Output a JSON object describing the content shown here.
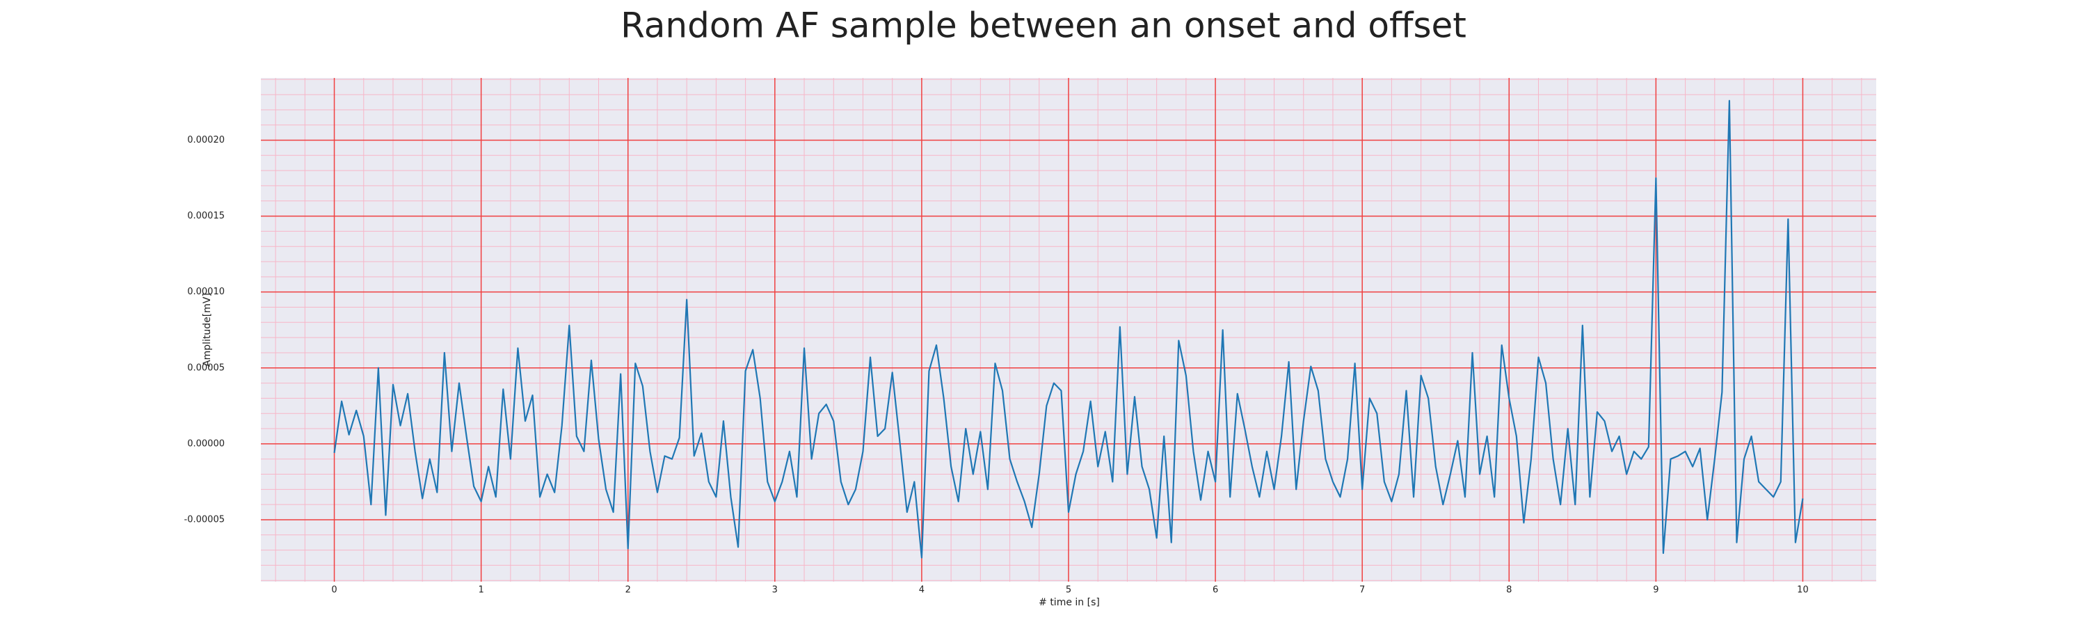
{
  "chart_data": {
    "type": "line",
    "title": "Random AF sample between an onset and offset",
    "x_label": "# time in [s]",
    "y_label": "Amplitude[mV]",
    "color": "#1f77b4",
    "grid": true,
    "minor_grid": true,
    "xlim": [
      -0.5,
      10.5
    ],
    "ylim": [
      -9.08e-05,
      0.000241
    ],
    "xticks": [
      0,
      1,
      2,
      3,
      4,
      5,
      6,
      7,
      8,
      9,
      10
    ],
    "yticks": [
      {
        "value": -5e-05,
        "label": "-0.00005"
      },
      {
        "value": 0,
        "label": "0.00000"
      },
      {
        "value": 5e-05,
        "label": "0.00005"
      },
      {
        "value": 0.0001,
        "label": "0.00010"
      },
      {
        "value": 0.00015,
        "label": "0.00015"
      },
      {
        "value": 0.0002,
        "label": "0.00020"
      }
    ],
    "minor_xticks": [
      -0.4,
      -0.2,
      0.2,
      0.4,
      0.6,
      0.8,
      1.2,
      1.4,
      1.6,
      1.8,
      2.2,
      2.4,
      2.6,
      2.8,
      3.2,
      3.4,
      3.6,
      3.8,
      4.2,
      4.4,
      4.6,
      4.8,
      5.2,
      5.4,
      5.6,
      5.8,
      6.2,
      6.4,
      6.6,
      6.8,
      7.2,
      7.4,
      7.6,
      7.8,
      8.2,
      8.4,
      8.6,
      8.8,
      9.2,
      9.4,
      9.6,
      9.8,
      10.2,
      10.4
    ],
    "minor_yticks": [
      -9e-05,
      -8e-05,
      -7e-05,
      -6e-05,
      -4e-05,
      -3e-05,
      -2e-05,
      -1e-05,
      1e-05,
      2e-05,
      3e-05,
      4e-05,
      6e-05,
      7e-05,
      8e-05,
      9e-05,
      0.00011,
      0.00012,
      0.00013,
      0.00014,
      0.00016,
      0.00017,
      0.00018,
      0.00019,
      0.00021,
      0.00022,
      0.00023,
      0.00024
    ],
    "x": [
      0,
      0.05,
      0.1,
      0.15,
      0.2,
      0.25,
      0.3,
      0.35,
      0.4,
      0.45,
      0.5,
      0.55,
      0.6,
      0.65,
      0.7,
      0.75,
      0.8,
      0.85,
      0.9,
      0.95,
      1,
      1.05,
      1.1,
      1.15,
      1.2,
      1.25,
      1.3,
      1.35,
      1.4,
      1.45,
      1.5,
      1.55,
      1.6,
      1.65,
      1.7,
      1.75,
      1.8,
      1.85,
      1.9,
      1.95,
      2,
      2.05,
      2.1,
      2.15,
      2.2,
      2.25,
      2.3,
      2.35,
      2.4,
      2.45,
      2.5,
      2.55,
      2.6,
      2.65,
      2.7,
      2.75,
      2.8,
      2.85,
      2.9,
      2.95,
      3,
      3.05,
      3.1,
      3.15,
      3.2,
      3.25,
      3.3,
      3.35,
      3.4,
      3.45,
      3.5,
      3.55,
      3.6,
      3.65,
      3.7,
      3.75,
      3.8,
      3.85,
      3.9,
      3.95,
      4,
      4.05,
      4.1,
      4.15,
      4.2,
      4.25,
      4.3,
      4.35,
      4.4,
      4.45,
      4.5,
      4.55,
      4.6,
      4.65,
      4.7,
      4.75,
      4.8,
      4.85,
      4.9,
      4.95,
      5,
      5.05,
      5.1,
      5.15,
      5.2,
      5.25,
      5.3,
      5.35,
      5.4,
      5.45,
      5.5,
      5.55,
      5.6,
      5.65,
      5.7,
      5.75,
      5.8,
      5.85,
      5.9,
      5.95,
      6,
      6.05,
      6.1,
      6.15,
      6.2,
      6.25,
      6.3,
      6.35,
      6.4,
      6.45,
      6.5,
      6.55,
      6.6,
      6.65,
      6.7,
      6.75,
      6.8,
      6.85,
      6.9,
      6.95,
      7,
      7.05,
      7.1,
      7.15,
      7.2,
      7.25,
      7.3,
      7.35,
      7.4,
      7.45,
      7.5,
      7.55,
      7.6,
      7.65,
      7.7,
      7.75,
      7.8,
      7.85,
      7.9,
      7.95,
      8,
      8.05,
      8.1,
      8.15,
      8.2,
      8.25,
      8.3,
      8.35,
      8.4,
      8.45,
      8.5,
      8.55,
      8.6,
      8.65,
      8.7,
      8.75,
      8.8,
      8.85,
      8.9,
      8.95,
      9,
      9.05,
      9.1,
      9.15,
      9.2,
      9.25,
      9.3,
      9.35,
      9.4,
      9.45,
      9.5,
      9.55,
      9.6,
      9.65,
      9.7,
      9.75,
      9.8,
      9.85,
      9.9,
      9.95,
      10
    ],
    "values": [
      -6e-06,
      2.8e-05,
      6e-06,
      2.2e-05,
      5e-06,
      -4e-05,
      5e-05,
      -4.7e-05,
      3.9e-05,
      1.2e-05,
      3.3e-05,
      -5e-06,
      -3.6e-05,
      -1e-05,
      -3.2e-05,
      6e-05,
      -5e-06,
      4e-05,
      5e-06,
      -2.8e-05,
      -3.8e-05,
      -1.5e-05,
      -3.5e-05,
      3.6e-05,
      -1e-05,
      6.3e-05,
      1.5e-05,
      3.2e-05,
      -3.5e-05,
      -2e-05,
      -3.2e-05,
      1.2e-05,
      7.8e-05,
      5e-06,
      -5e-06,
      5.5e-05,
      3e-06,
      -3e-05,
      -4.5e-05,
      4.6e-05,
      -6.9e-05,
      5.3e-05,
      3.8e-05,
      -5e-06,
      -3.2e-05,
      -8e-06,
      -1e-05,
      4e-06,
      9.5e-05,
      -8e-06,
      7e-06,
      -2.5e-05,
      -3.5e-05,
      1.5e-05,
      -3.5e-05,
      -6.8e-05,
      4.8e-05,
      6.2e-05,
      3e-05,
      -2.5e-05,
      -3.8e-05,
      -2.5e-05,
      -5e-06,
      -3.5e-05,
      6.3e-05,
      -1e-05,
      2e-05,
      2.6e-05,
      1.5e-05,
      -2.5e-05,
      -4e-05,
      -3e-05,
      -5e-06,
      5.7e-05,
      5e-06,
      1e-05,
      4.7e-05,
      2e-06,
      -4.5e-05,
      -2.5e-05,
      -7.5e-05,
      4.8e-05,
      6.5e-05,
      3e-05,
      -1.5e-05,
      -3.8e-05,
      1e-05,
      -2e-05,
      8e-06,
      -3e-05,
      5.3e-05,
      3.5e-05,
      -1e-05,
      -2.5e-05,
      -3.8e-05,
      -5.5e-05,
      -2e-05,
      2.5e-05,
      4e-05,
      3.5e-05,
      -4.5e-05,
      -2e-05,
      -5e-06,
      2.8e-05,
      -1.5e-05,
      8e-06,
      -2.5e-05,
      7.7e-05,
      -2e-05,
      3.1e-05,
      -1.5e-05,
      -3e-05,
      -6.2e-05,
      5e-06,
      -6.5e-05,
      6.8e-05,
      4.5e-05,
      -5e-06,
      -3.7e-05,
      -5e-06,
      -2.5e-05,
      7.5e-05,
      -3.5e-05,
      3.3e-05,
      1e-05,
      -1.5e-05,
      -3.5e-05,
      -5e-06,
      -3e-05,
      5e-06,
      5.4e-05,
      -3e-05,
      1.5e-05,
      5.1e-05,
      3.5e-05,
      -1e-05,
      -2.5e-05,
      -3.5e-05,
      -1e-05,
      5.3e-05,
      -3e-05,
      3e-05,
      2e-05,
      -2.5e-05,
      -3.8e-05,
      -2e-05,
      3.5e-05,
      -3.5e-05,
      4.5e-05,
      3e-05,
      -1.5e-05,
      -4e-05,
      -2e-05,
      2e-06,
      -3.5e-05,
      6e-05,
      -2e-05,
      5e-06,
      -3.5e-05,
      6.5e-05,
      3e-05,
      5e-06,
      -5.2e-05,
      -1e-05,
      5.7e-05,
      4e-05,
      -1e-05,
      -4e-05,
      1e-05,
      -4e-05,
      7.8e-05,
      -3.5e-05,
      2.1e-05,
      1.5e-05,
      -5e-06,
      5e-06,
      -2e-05,
      -5e-06,
      -1e-05,
      -2e-06,
      0.000175,
      -7.2e-05,
      -1e-05,
      -8e-06,
      -5e-06,
      -1.5e-05,
      -3e-06,
      -5e-05,
      -1e-05,
      3.4e-05,
      0.000226,
      -6.5e-05,
      -1e-05,
      5e-06,
      -2.5e-05,
      -3e-05,
      -3.5e-05,
      -2.5e-05,
      0.000148,
      -6.5e-05,
      -3.6e-05
    ]
  }
}
